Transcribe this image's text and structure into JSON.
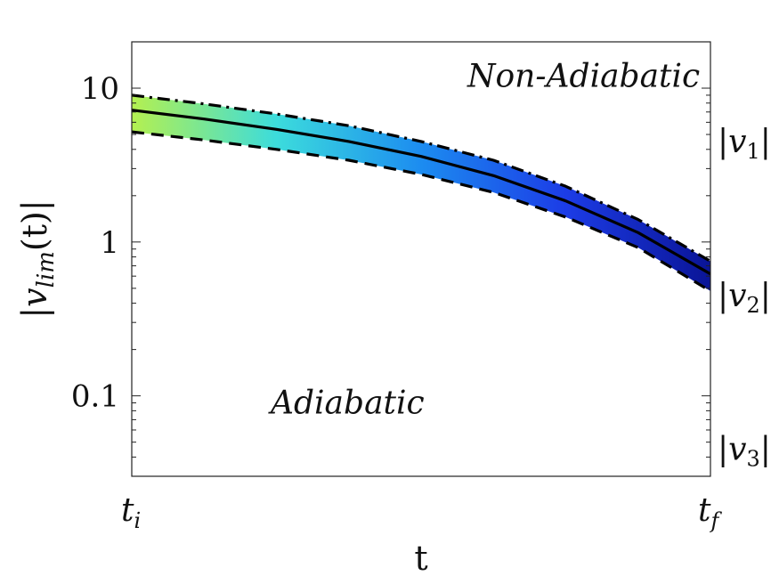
{
  "chart_data": {
    "type": "line",
    "xlabel": "t",
    "ylabel": "|v_lim(t)|",
    "yscale": "log",
    "ylim": [
      0.03,
      20
    ],
    "xlim": [
      0,
      1
    ],
    "x_tick_labels": [
      {
        "x": 0,
        "base": "t",
        "sub": "i"
      },
      {
        "x": 1,
        "base": "t",
        "sub": "f"
      }
    ],
    "y_ticks": [
      {
        "value": 10,
        "label": "10"
      },
      {
        "value": 1,
        "label": "1"
      },
      {
        "value": 0.1,
        "label": "0.1"
      }
    ],
    "right_labels": [
      {
        "value": 4.5,
        "base": "v",
        "sub": "1"
      },
      {
        "value": 0.45,
        "base": "v",
        "sub": "2"
      },
      {
        "value": 0.045,
        "base": "v",
        "sub": "3"
      }
    ],
    "annotations": [
      {
        "text": "Non-Adiabatic",
        "x": 0.58,
        "y": 12
      },
      {
        "text": "Adiabatic",
        "x": 0.24,
        "y": 0.09
      }
    ],
    "x": [
      0,
      0.125,
      0.25,
      0.375,
      0.5,
      0.625,
      0.75,
      0.875,
      1
    ],
    "series": [
      {
        "style": "dash-dot",
        "values": [
          9.0,
          7.9,
          6.8,
          5.7,
          4.5,
          3.4,
          2.3,
          1.4,
          0.75
        ]
      },
      {
        "style": "solid",
        "values": [
          7.2,
          6.3,
          5.4,
          4.5,
          3.6,
          2.7,
          1.85,
          1.15,
          0.62
        ]
      },
      {
        "style": "dashed",
        "values": [
          5.2,
          4.6,
          4.0,
          3.4,
          2.75,
          2.1,
          1.45,
          0.92,
          0.48
        ]
      }
    ],
    "band_colors": [
      "#b4f050",
      "#3cdcdc",
      "#1c8cf0",
      "#1c3ce6",
      "#0a1496"
    ],
    "grid": false,
    "legend": "none"
  }
}
